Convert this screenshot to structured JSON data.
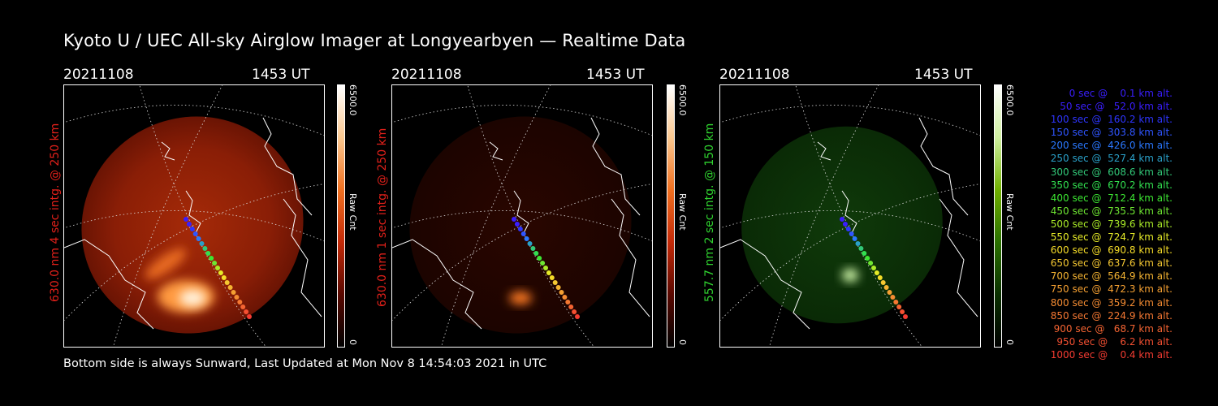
{
  "title": "Kyoto U / UEC All-sky Airglow Imager at Longyearbyen — Realtime Data",
  "footer": "Bottom side is always Sunward, Last Updated at Mon Nov  8 14:54:03 2021 in UTC",
  "panels": [
    {
      "date": "20211108",
      "time": "1453 UT",
      "side_label": "630.0 nm 4 sec intg. @ 250 km",
      "side_color": "#e0201a",
      "cbar_max": "6500.0",
      "cbar_unit": "Raw Cnt",
      "cbar_min": "0",
      "colormap": "red"
    },
    {
      "date": "20211108",
      "time": "1453 UT",
      "side_label": "630.0 nm 1 sec intg. @ 250 km",
      "side_color": "#e0201a",
      "cbar_max": "6500.0",
      "cbar_unit": "Raw Cnt",
      "cbar_min": "0",
      "colormap": "red"
    },
    {
      "date": "20211108",
      "time": "1453 UT",
      "side_label": "557.7 nm 2 sec intg. @ 150 km",
      "side_color": "#2fd22f",
      "cbar_max": "6500.0",
      "cbar_unit": "Raw Cnt",
      "cbar_min": "0",
      "colormap": "green"
    }
  ],
  "legend": [
    {
      "text": "   0 sec @    0.1 km alt.",
      "color": "#3a1eff"
    },
    {
      "text": "  50 sec @   52.0 km alt.",
      "color": "#3a1eff"
    },
    {
      "text": " 100 sec @  160.2 km alt.",
      "color": "#2e35ff"
    },
    {
      "text": " 150 sec @  303.8 km alt.",
      "color": "#2f55ff"
    },
    {
      "text": " 200 sec @  426.0 km alt.",
      "color": "#2a78ff"
    },
    {
      "text": " 250 sec @  527.4 km alt.",
      "color": "#2aa0c8"
    },
    {
      "text": " 300 sec @  608.6 km alt.",
      "color": "#32c878"
    },
    {
      "text": " 350 sec @  670.2 km alt.",
      "color": "#32e050"
    },
    {
      "text": " 400 sec @  712.4 km alt.",
      "color": "#3ce632"
    },
    {
      "text": " 450 sec @  735.5 km alt.",
      "color": "#6ee632"
    },
    {
      "text": " 500 sec @  739.6 km alt.",
      "color": "#aaeb28"
    },
    {
      "text": " 550 sec @  724.7 km alt.",
      "color": "#e6eb28"
    },
    {
      "text": " 600 sec @  690.8 km alt.",
      "color": "#f5dc28"
    },
    {
      "text": " 650 sec @  637.6 km alt.",
      "color": "#f5c832"
    },
    {
      "text": " 700 sec @  564.9 km alt.",
      "color": "#f5b432"
    },
    {
      "text": " 750 sec @  472.3 km alt.",
      "color": "#f5a032"
    },
    {
      "text": " 800 sec @  359.2 km alt.",
      "color": "#f58c32"
    },
    {
      "text": " 850 sec @  224.9 km alt.",
      "color": "#f57832"
    },
    {
      "text": " 900 sec @   68.7 km alt.",
      "color": "#f56432"
    },
    {
      "text": " 950 sec @    6.2 km alt.",
      "color": "#f55032"
    },
    {
      "text": "1000 sec @    0.4 km alt.",
      "color": "#f53c32"
    }
  ]
}
